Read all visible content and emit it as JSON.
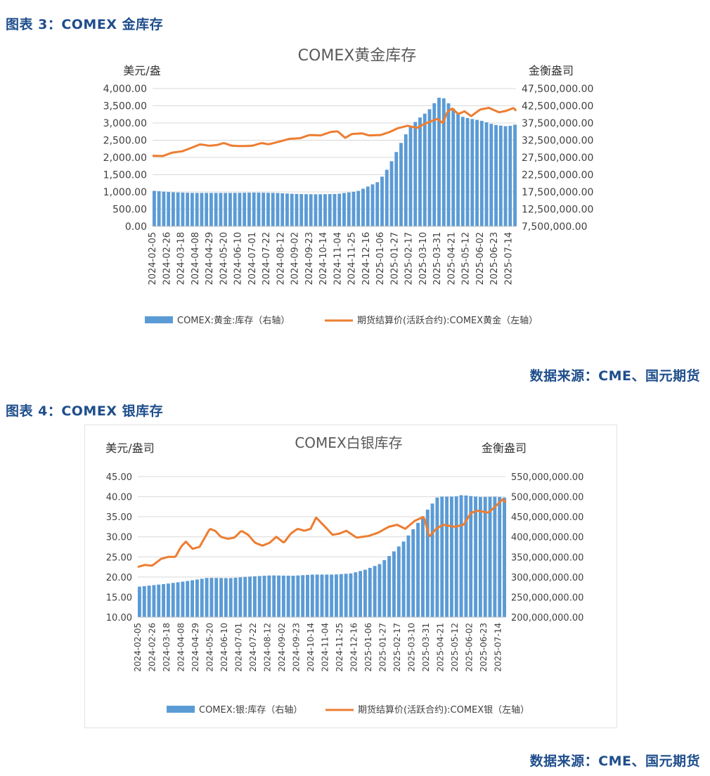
{
  "figure3": {
    "caption": "图表 3：COMEX 金库存",
    "source": "数据来源：CME、国元期货"
  },
  "figure4": {
    "caption": "图表 4：COMEX 银库存",
    "source": "数据来源：CME、国元期货"
  },
  "colors": {
    "bar": "#5b9bd5",
    "line": "#ed7d31",
    "caption": "#1f4e8c"
  },
  "chart_data": [
    {
      "type": "bar",
      "title": "COMEX黄金库存",
      "ylabel_left": "美元/盎",
      "ylabel_right": "金衡盎司",
      "left_ticks": [
        "4,000.00",
        "3,500.00",
        "3,000.00",
        "2,500.00",
        "2,000.00",
        "1,500.00",
        "1,000.00",
        "500.00",
        "0.00"
      ],
      "right_ticks": [
        "47,500,000.00",
        "42,500,000.00",
        "37,500,000.00",
        "32,500,000.00",
        "27,500,000.00",
        "22,500,000.00",
        "17,500,000.00",
        "12,500,000.00",
        "7,500,000.00"
      ],
      "left_range": [
        0,
        4000
      ],
      "right_range": [
        7500000,
        47500000
      ],
      "x_start": "2024-02-05",
      "x_end": "2025-07-25",
      "categories": [
        "2024-02-05",
        "2024-02-26",
        "2024-03-18",
        "2024-04-08",
        "2024-04-29",
        "2024-05-20",
        "2024-06-10",
        "2024-07-01",
        "2024-07-22",
        "2024-08-12",
        "2024-09-02",
        "2024-09-23",
        "2024-10-14",
        "2024-11-04",
        "2024-11-25",
        "2024-12-16",
        "2025-01-06",
        "2025-01-27",
        "2025-02-17",
        "2025-03-10",
        "2025-03-31",
        "2025-04-21",
        "2025-05-12",
        "2025-06-02",
        "2025-06-23",
        "2025-07-14"
      ],
      "series": [
        {
          "name": "COMEX:黄金:库存（右轴）",
          "type": "bar",
          "axis": "right",
          "points": [
            [
              "2024-02-05",
              17800000
            ],
            [
              "2024-03-01",
              17400000
            ],
            [
              "2024-04-01",
              17200000
            ],
            [
              "2024-05-01",
              17200000
            ],
            [
              "2024-06-01",
              17200000
            ],
            [
              "2024-07-01",
              17300000
            ],
            [
              "2024-08-01",
              17200000
            ],
            [
              "2024-09-01",
              16900000
            ],
            [
              "2024-10-01",
              16800000
            ],
            [
              "2024-11-01",
              16900000
            ],
            [
              "2024-12-01",
              17700000
            ],
            [
              "2025-01-01",
              20500000
            ],
            [
              "2025-01-15",
              24500000
            ],
            [
              "2025-02-01",
              31000000
            ],
            [
              "2025-02-15",
              36000000
            ],
            [
              "2025-03-01",
              38800000
            ],
            [
              "2025-03-15",
              41000000
            ],
            [
              "2025-03-25",
              43500000
            ],
            [
              "2025-04-03",
              45500000
            ],
            [
              "2025-04-15",
              43000000
            ],
            [
              "2025-05-01",
              39500000
            ],
            [
              "2025-05-15",
              38800000
            ],
            [
              "2025-06-01",
              38200000
            ],
            [
              "2025-06-20",
              37000000
            ],
            [
              "2025-07-10",
              36500000
            ],
            [
              "2025-07-25",
              37200000
            ]
          ]
        },
        {
          "name": "期货结算价(活跃合约):COMEX黄金（左轴）",
          "type": "line",
          "axis": "left",
          "points": [
            [
              "2024-02-05",
              2050
            ],
            [
              "2024-02-20",
              2040
            ],
            [
              "2024-03-05",
              2140
            ],
            [
              "2024-03-20",
              2180
            ],
            [
              "2024-04-05",
              2300
            ],
            [
              "2024-04-15",
              2380
            ],
            [
              "2024-04-29",
              2340
            ],
            [
              "2024-05-10",
              2360
            ],
            [
              "2024-05-20",
              2420
            ],
            [
              "2024-06-01",
              2340
            ],
            [
              "2024-06-15",
              2330
            ],
            [
              "2024-07-01",
              2340
            ],
            [
              "2024-07-15",
              2420
            ],
            [
              "2024-07-25",
              2380
            ],
            [
              "2024-08-10",
              2460
            ],
            [
              "2024-08-25",
              2540
            ],
            [
              "2024-09-10",
              2560
            ],
            [
              "2024-09-23",
              2650
            ],
            [
              "2024-10-10",
              2640
            ],
            [
              "2024-10-25",
              2740
            ],
            [
              "2024-11-04",
              2760
            ],
            [
              "2024-11-15",
              2570
            ],
            [
              "2024-11-25",
              2680
            ],
            [
              "2024-12-10",
              2700
            ],
            [
              "2024-12-20",
              2640
            ],
            [
              "2025-01-06",
              2650
            ],
            [
              "2025-01-20",
              2740
            ],
            [
              "2025-02-01",
              2850
            ],
            [
              "2025-02-15",
              2920
            ],
            [
              "2025-03-01",
              2860
            ],
            [
              "2025-03-15",
              3000
            ],
            [
              "2025-03-31",
              3120
            ],
            [
              "2025-04-08",
              3000
            ],
            [
              "2025-04-15",
              3330
            ],
            [
              "2025-04-22",
              3420
            ],
            [
              "2025-05-01",
              3260
            ],
            [
              "2025-05-10",
              3340
            ],
            [
              "2025-05-20",
              3200
            ],
            [
              "2025-06-02",
              3390
            ],
            [
              "2025-06-15",
              3440
            ],
            [
              "2025-06-30",
              3310
            ],
            [
              "2025-07-10",
              3350
            ],
            [
              "2025-07-22",
              3440
            ],
            [
              "2025-07-25",
              3350
            ]
          ]
        }
      ],
      "legend_position": "bottom"
    },
    {
      "type": "bar",
      "title": "COMEX白银库存",
      "ylabel_left": "美元/盎司",
      "ylabel_right": "金衡盎司",
      "left_ticks": [
        "45.00",
        "40.00",
        "35.00",
        "30.00",
        "25.00",
        "20.00",
        "15.00",
        "10.00"
      ],
      "right_ticks": [
        "550,000,000.00",
        "500,000,000.00",
        "450,000,000.00",
        "400,000,000.00",
        "350,000,000.00",
        "300,000,000.00",
        "250,000,000.00",
        "200,000,000.00"
      ],
      "left_range": [
        10,
        45
      ],
      "right_range": [
        200000000,
        550000000
      ],
      "x_start": "2024-02-05",
      "x_end": "2025-07-25",
      "categories": [
        "2024-02-05",
        "2024-02-26",
        "2024-03-18",
        "2024-04-08",
        "2024-04-29",
        "2024-05-20",
        "2024-06-10",
        "2024-07-01",
        "2024-07-22",
        "2024-08-12",
        "2024-09-02",
        "2024-09-23",
        "2024-10-14",
        "2024-11-04",
        "2024-11-25",
        "2024-12-16",
        "2025-01-06",
        "2025-01-27",
        "2025-02-17",
        "2025-03-10",
        "2025-03-31",
        "2025-04-21",
        "2025-05-12",
        "2025-06-02",
        "2025-06-23",
        "2025-07-14"
      ],
      "series": [
        {
          "name": "COMEX:银:库存（右轴）",
          "type": "bar",
          "axis": "right",
          "points": [
            [
              "2024-02-05",
              276000000
            ],
            [
              "2024-03-15",
              283000000
            ],
            [
              "2024-04-15",
              290000000
            ],
            [
              "2024-05-15",
              298000000
            ],
            [
              "2024-06-15",
              297000000
            ],
            [
              "2024-07-15",
              301000000
            ],
            [
              "2024-08-15",
              304000000
            ],
            [
              "2024-09-15",
              303000000
            ],
            [
              "2024-10-15",
              306000000
            ],
            [
              "2024-11-15",
              306000000
            ],
            [
              "2024-12-10",
              309000000
            ],
            [
              "2024-12-30",
              318000000
            ],
            [
              "2025-01-20",
              332000000
            ],
            [
              "2025-02-05",
              355000000
            ],
            [
              "2025-02-25",
              390000000
            ],
            [
              "2025-03-15",
              430000000
            ],
            [
              "2025-04-01",
              470000000
            ],
            [
              "2025-04-15",
              500000000
            ],
            [
              "2025-05-10",
              500000000
            ],
            [
              "2025-05-20",
              504000000
            ],
            [
              "2025-06-15",
              499000000
            ],
            [
              "2025-07-10",
              500000000
            ],
            [
              "2025-07-25",
              497000000
            ]
          ]
        },
        {
          "name": "期货结算价(活跃合约):COMEX银（左轴）",
          "type": "line",
          "axis": "left",
          "points": [
            [
              "2024-02-05",
              22.5
            ],
            [
              "2024-02-15",
              23.0
            ],
            [
              "2024-02-26",
              22.8
            ],
            [
              "2024-03-10",
              24.5
            ],
            [
              "2024-03-20",
              25.0
            ],
            [
              "2024-03-31",
              25.0
            ],
            [
              "2024-04-08",
              27.5
            ],
            [
              "2024-04-15",
              28.8
            ],
            [
              "2024-04-25",
              27.0
            ],
            [
              "2024-05-05",
              27.5
            ],
            [
              "2024-05-20",
              32.0
            ],
            [
              "2024-05-28",
              31.5
            ],
            [
              "2024-06-05",
              30.0
            ],
            [
              "2024-06-15",
              29.5
            ],
            [
              "2024-06-25",
              29.8
            ],
            [
              "2024-07-05",
              31.5
            ],
            [
              "2024-07-15",
              30.5
            ],
            [
              "2024-07-25",
              28.5
            ],
            [
              "2024-08-05",
              27.8
            ],
            [
              "2024-08-15",
              28.5
            ],
            [
              "2024-08-25",
              30.0
            ],
            [
              "2024-09-05",
              28.5
            ],
            [
              "2024-09-15",
              30.8
            ],
            [
              "2024-09-25",
              32.0
            ],
            [
              "2024-10-05",
              31.5
            ],
            [
              "2024-10-14",
              32.0
            ],
            [
              "2024-10-22",
              34.8
            ],
            [
              "2024-11-04",
              32.5
            ],
            [
              "2024-11-15",
              30.5
            ],
            [
              "2024-11-25",
              30.8
            ],
            [
              "2024-12-05",
              31.5
            ],
            [
              "2024-12-20",
              29.8
            ],
            [
              "2025-01-06",
              30.2
            ],
            [
              "2025-01-20",
              31.0
            ],
            [
              "2025-02-05",
              32.5
            ],
            [
              "2025-02-17",
              33.0
            ],
            [
              "2025-03-01",
              32.0
            ],
            [
              "2025-03-15",
              34.0
            ],
            [
              "2025-03-28",
              35.0
            ],
            [
              "2025-04-05",
              30.0
            ],
            [
              "2025-04-15",
              32.0
            ],
            [
              "2025-04-25",
              33.0
            ],
            [
              "2025-05-12",
              32.5
            ],
            [
              "2025-05-25",
              33.0
            ],
            [
              "2025-06-05",
              36.0
            ],
            [
              "2025-06-15",
              36.5
            ],
            [
              "2025-06-30",
              36.0
            ],
            [
              "2025-07-10",
              37.5
            ],
            [
              "2025-07-22",
              39.5
            ],
            [
              "2025-07-25",
              38.5
            ]
          ]
        }
      ],
      "legend_position": "bottom"
    }
  ]
}
